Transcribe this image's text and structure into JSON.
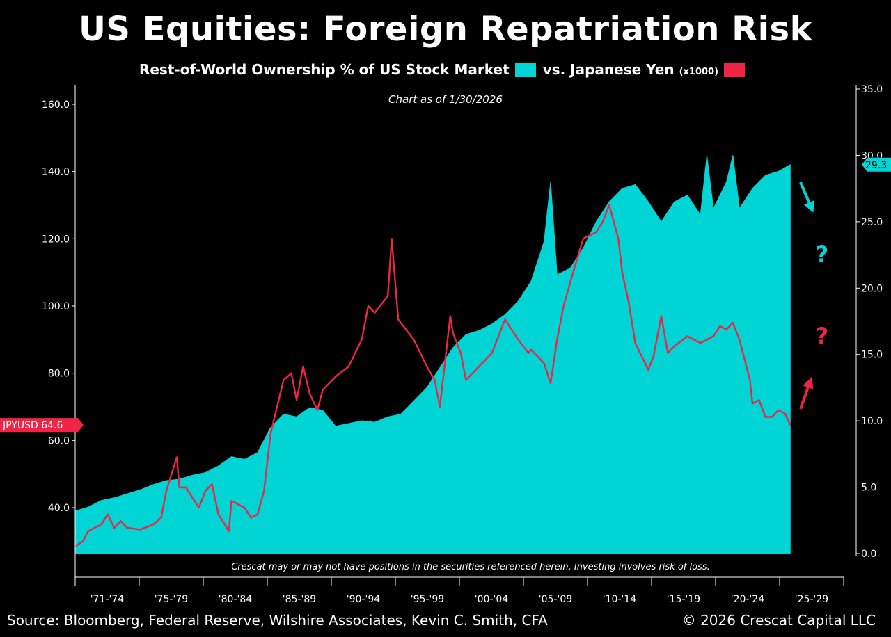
{
  "title": "US Equities: Foreign Repatriation Risk",
  "subtitle": {
    "series1_label": "Rest-of-World Ownership % of US Stock Market",
    "series2_label": "vs. Japanese Yen",
    "series2_suffix": "(x1000)"
  },
  "as_of": "Chart as of 1/30/2026",
  "disclaimer": "Crescat may or may not have positions in the securities referenced herein. Investing involves risk of loss.",
  "source": "Source: Bloomberg, Federal Reserve, Wilshire Associates, Kevin C. Smith, CFA",
  "copyright": "© 2026 Crescat Capital LLC",
  "colors": {
    "cyan": "#00D4D4",
    "red": "#F02446",
    "background": "#000000"
  },
  "annotations": {
    "question_mark": "?",
    "arrow_down": "down-right-arrow",
    "arrow_up": "up-right-arrow"
  },
  "chart_data": {
    "type": "line",
    "x_tick_labels": [
      "'71-'74",
      "'75-'79",
      "'80-'84",
      "'85-'89",
      "'90-'94",
      "'95-'99",
      "'00-'04",
      "'05-'09",
      "'10-'14",
      "'15-'19",
      "'20-'24",
      "'25-'29"
    ],
    "left_axis": {
      "ticks": [
        "40.0",
        "60.0",
        "80.0",
        "100.0",
        "120.0",
        "140.0",
        "160.0"
      ],
      "ylim": [
        26,
        164
      ]
    },
    "right_axis": {
      "ticks": [
        "0.0",
        "5.0",
        "10.0",
        "15.0",
        "20.0",
        "25.0",
        "30.0",
        "35.0"
      ],
      "ylim": [
        0,
        35
      ]
    },
    "last_value_labels": {
      "left": "JPYUSD 64.6",
      "right": "29.3"
    },
    "series": [
      {
        "name": "Rest-of-World Ownership % of US Stock Market",
        "axis": "right",
        "style": "area",
        "x": [
          1971,
          1972,
          1973,
          1974,
          1975,
          1976,
          1977,
          1978,
          1979,
          1980,
          1981,
          1982,
          1983,
          1984,
          1985,
          1986,
          1987,
          1988,
          1989,
          1990,
          1991,
          1992,
          1993,
          1994,
          1995,
          1996,
          1997,
          1998,
          1999,
          2000,
          2001,
          2002,
          2003,
          2004,
          2005,
          2006,
          2007,
          2007.5,
          2008,
          2009,
          2010,
          2011,
          2012,
          2013,
          2014,
          2015,
          2016,
          2017,
          2018,
          2019,
          2019.5,
          2020,
          2021,
          2021.5,
          2022,
          2023,
          2024,
          2025,
          2025.9
        ],
        "values": [
          3.2,
          3.5,
          4.0,
          4.2,
          4.5,
          4.8,
          5.2,
          5.5,
          5.6,
          5.9,
          6.1,
          6.6,
          7.3,
          7.1,
          7.6,
          9.5,
          10.5,
          10.3,
          11.0,
          10.8,
          9.6,
          9.8,
          10.0,
          9.9,
          10.3,
          10.5,
          11.5,
          12.5,
          14.0,
          15.5,
          16.5,
          16.8,
          17.3,
          18.0,
          19.0,
          20.5,
          23.5,
          28.0,
          21.0,
          21.5,
          23.0,
          25.0,
          26.5,
          27.5,
          27.8,
          26.5,
          25.0,
          26.5,
          27.0,
          25.5,
          30.0,
          26.0,
          28.0,
          30.0,
          26.0,
          27.5,
          28.5,
          28.8,
          29.3
        ]
      },
      {
        "name": "vs. Japanese Yen (x1000)",
        "axis": "left",
        "style": "line",
        "x": [
          1971,
          1971.6,
          1972,
          1973,
          1973.5,
          1974,
          1974.5,
          1975,
          1976,
          1977,
          1977.6,
          1978,
          1978.8,
          1979,
          1979.5,
          1980,
          1980.5,
          1981,
          1981.5,
          1982,
          1982.8,
          1983,
          1984,
          1984.5,
          1985,
          1985.5,
          1986,
          1987,
          1987.6,
          1988,
          1988.5,
          1989,
          1989.6,
          1990,
          1991,
          1992,
          1993,
          1993.5,
          1994,
          1995,
          1995.3,
          1995.8,
          1996,
          1997,
          1998,
          1998.6,
          1999,
          1999.8,
          2000,
          2000.6,
          2001,
          2002,
          2003,
          2004,
          2005,
          2005.8,
          2006,
          2007,
          2007.5,
          2008,
          2008.5,
          2009,
          2010,
          2011,
          2011.5,
          2012,
          2012.7,
          2013,
          2013.5,
          2014,
          2015,
          2015.4,
          2016,
          2016.5,
          2017,
          2018,
          2019,
          2020,
          2020.5,
          2021,
          2021.5,
          2022,
          2022.8,
          2023,
          2023.5,
          2024,
          2024.5,
          2025,
          2025.5,
          2025.9
        ],
        "values": [
          28.5,
          30,
          33,
          35,
          38,
          34,
          36,
          34,
          33.5,
          35,
          37,
          45,
          55,
          46,
          46,
          43,
          40,
          45,
          47,
          38,
          33,
          42,
          40,
          37,
          38,
          45,
          62,
          78,
          80,
          72,
          82,
          74,
          69,
          75,
          79,
          82,
          90,
          100,
          98,
          103,
          120,
          96,
          95,
          90,
          82,
          78,
          70,
          97,
          92,
          86,
          78,
          82,
          86,
          96,
          90,
          86,
          87,
          83,
          77,
          90,
          100,
          107,
          120,
          122,
          125,
          130,
          120,
          110,
          101,
          89,
          81,
          85,
          97,
          86,
          88,
          91,
          89,
          91,
          94,
          93,
          95,
          90,
          78,
          71,
          72,
          67,
          67,
          69,
          68,
          64.6
        ]
      }
    ]
  }
}
